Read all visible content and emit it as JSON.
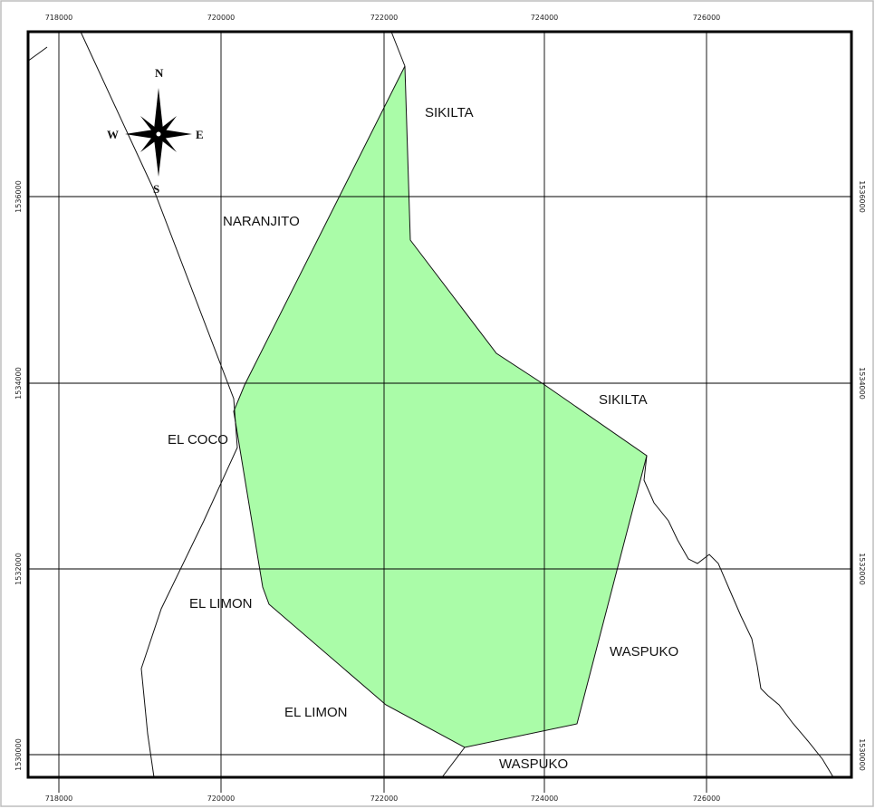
{
  "x_ticks": [
    "718000",
    "720000",
    "722000",
    "724000",
    "726000"
  ],
  "y_ticks": [
    "1536000",
    "1534000",
    "1532000",
    "1530000"
  ],
  "compass": {
    "n": "N",
    "s": "S",
    "e": "E",
    "w": "W"
  },
  "places": {
    "sikilta_north": "SIKILTA",
    "naranjito": "NARANJITO",
    "sikilta_east": "SIKILTA",
    "el_coco": "EL COCO",
    "el_limon_west": "EL LIMON",
    "el_limon_south": "EL LIMON",
    "waspuko_east": "WASPUKO",
    "waspuko_south": "WASPUKO"
  },
  "colors": {
    "area_fill": "#aafca8",
    "frame": "#000000",
    "grid": "#000000",
    "outer_frame": "#bdbdbd"
  }
}
